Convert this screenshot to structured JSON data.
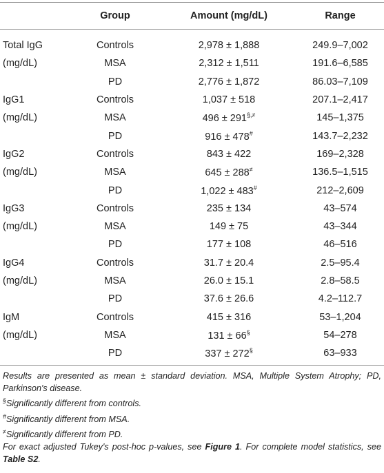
{
  "table": {
    "header": [
      "Group",
      "Amount (mg/dL)",
      "Range"
    ],
    "rows": [
      {
        "label": "Total IgG",
        "group": "Controls",
        "amount": "2,978 ± 1,888",
        "range": "249.9–7,002"
      },
      {
        "label": "(mg/dL)",
        "group": "MSA",
        "amount": "2,312 ± 1,511",
        "range": "191.6–6,585"
      },
      {
        "group": "PD",
        "amount": "2,776 ± 1,872",
        "range": "86.03–7,109"
      },
      {
        "label": "IgG1",
        "group": "Controls",
        "amount": "1,037 ± 518",
        "range": "207.1–2,417"
      },
      {
        "label": "(mg/dL)",
        "group": "MSA",
        "amount": "496 ± 291",
        "sup": "§,≠",
        "range": "145–1,375"
      },
      {
        "group": "PD",
        "amount": "916 ± 478",
        "sup": "#",
        "range": "143.7–2,232"
      },
      {
        "label": "IgG2",
        "group": "Controls",
        "amount": "843 ± 422",
        "range": "169–2,328"
      },
      {
        "label": "(mg/dL)",
        "group": "MSA",
        "amount": "645 ± 288",
        "sup": "≠",
        "range": "136.5–1,515"
      },
      {
        "group": "PD",
        "amount": "1,022 ± 483",
        "sup": "#",
        "range": "212–2,609"
      },
      {
        "label": "IgG3",
        "group": "Controls",
        "amount": "235 ± 134",
        "range": "43–574"
      },
      {
        "label": "(mg/dL)",
        "group": "MSA",
        "amount": "149 ± 75",
        "range": "43–344"
      },
      {
        "group": "PD",
        "amount": "177 ± 108",
        "range": "46–516"
      },
      {
        "label": "IgG4",
        "group": "Controls",
        "amount": "31.7 ± 20.4",
        "range": "2.5–95.4"
      },
      {
        "label": "(mg/dL)",
        "group": "MSA",
        "amount": "26.0 ± 15.1",
        "range": "2.8–58.5"
      },
      {
        "group": "PD",
        "amount": "37.6 ± 26.6",
        "range": "4.2–112.7"
      },
      {
        "label": "IgM",
        "group": "Controls",
        "amount": "415 ± 316",
        "range": "53–1,204"
      },
      {
        "label": "(mg/dL)",
        "group": "MSA",
        "amount": "131 ± 66",
        "sup": "§",
        "range": "54–278"
      },
      {
        "group": "PD",
        "amount": "337 ± 272",
        "sup": "§",
        "range": "63–933"
      }
    ]
  },
  "notes": {
    "summary": "Results are presented as mean ± standard deviation. MSA, Multiple System Atrophy; PD, Parkinson's disease.",
    "symbols": [
      {
        "symbol": "§",
        "text": "Significantly different from controls."
      },
      {
        "symbol": "#",
        "text": "Significantly different from MSA."
      },
      {
        "symbol": "≠",
        "text": "Significantly different from PD."
      }
    ],
    "reference": {
      "text_1": "For exact adjusted Tukey's post-hoc p-values, see ",
      "figure": "Figure 1",
      "text_2": ". For complete model statistics, see ",
      "table": "Table S2",
      "text_3": "."
    }
  }
}
